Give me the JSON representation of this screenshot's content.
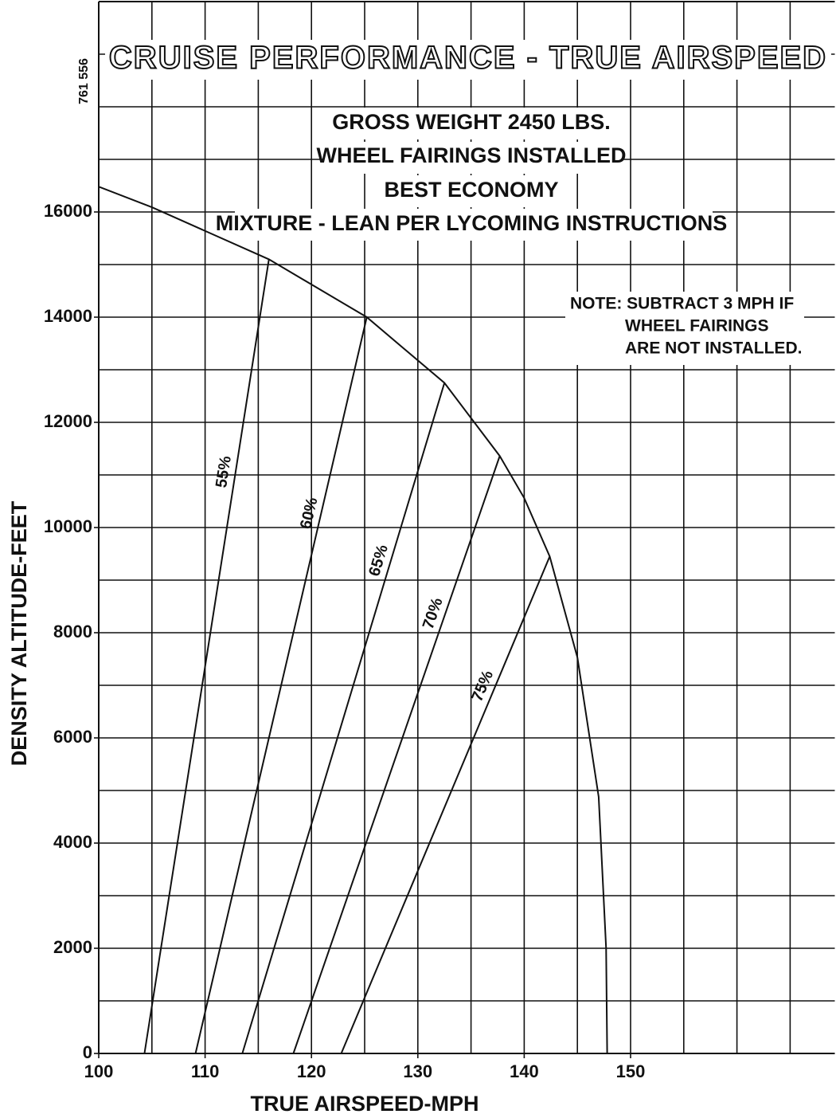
{
  "chart_data": {
    "type": "line",
    "title": "CRUISE PERFORMANCE - TRUE AIRSPEED",
    "side_code": "761 556",
    "conditions": [
      "GROSS WEIGHT 2450 LBS.",
      "WHEEL FAIRINGS INSTALLED",
      "BEST ECONOMY",
      "MIXTURE - LEAN PER LYCOMING INSTRUCTIONS"
    ],
    "note": [
      "NOTE: SUBTRACT 3 MPH IF",
      "WHEEL FAIRINGS",
      "ARE NOT INSTALLED."
    ],
    "x_label": "TRUE AIRSPEED-MPH",
    "y_label": "DENSITY ALTITUDE-FEET",
    "xlim": [
      100,
      169.2
    ],
    "ylim": [
      0,
      20000
    ],
    "xticks": [
      100,
      110,
      120,
      130,
      140,
      150
    ],
    "yticks": [
      0,
      2000,
      4000,
      6000,
      8000,
      10000,
      12000,
      14000,
      16000
    ],
    "xgrid": [
      105,
      110,
      115,
      120,
      125,
      130,
      135,
      140,
      145,
      150,
      155,
      160,
      165
    ],
    "ygrid": [
      1000,
      2000,
      3000,
      4000,
      5000,
      6000,
      7000,
      8000,
      9000,
      10000,
      11000,
      12000,
      13000,
      14000,
      15000,
      16000,
      17000,
      18000,
      19000
    ],
    "grid": true,
    "color": "#111111",
    "series": [
      {
        "name": "55%",
        "x": [
          104.3,
          116.0
        ],
        "values": [
          0,
          15100
        ]
      },
      {
        "name": "60%",
        "x": [
          109.1,
          125.2
        ],
        "values": [
          0,
          14000
        ]
      },
      {
        "name": "65%",
        "x": [
          113.5,
          132.5
        ],
        "values": [
          0,
          12750
        ]
      },
      {
        "name": "70%",
        "x": [
          118.3,
          137.7
        ],
        "values": [
          0,
          11360
        ]
      },
      {
        "name": "75%",
        "x": [
          122.8,
          142.4
        ],
        "values": [
          0,
          9450
        ]
      }
    ],
    "envelope": {
      "x": [
        100,
        105,
        116.0,
        125.2,
        132.5,
        137.7,
        140,
        142.4,
        145,
        147.0,
        147.7,
        147.8
      ],
      "values": [
        16480,
        16090,
        15100,
        14000,
        12750,
        11360,
        10560,
        9450,
        7530,
        4880,
        2000,
        0
      ]
    }
  }
}
